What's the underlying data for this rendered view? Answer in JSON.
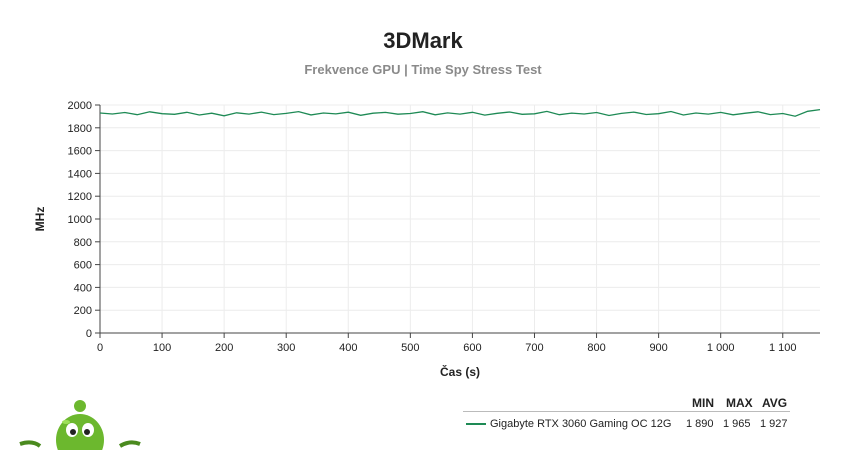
{
  "chart_data": {
    "type": "line",
    "title": "3DMark",
    "subtitle": "Frekvence GPU | Time Spy Stress Test",
    "xlabel": "Čas (s)",
    "ylabel": "MHz",
    "xlim": [
      0,
      1160
    ],
    "ylim": [
      0,
      2000
    ],
    "x_ticks": [
      0,
      100,
      200,
      300,
      400,
      500,
      600,
      700,
      800,
      900,
      1000,
      1100
    ],
    "x_tick_labels": [
      "0",
      "100",
      "200",
      "300",
      "400",
      "500",
      "600",
      "700",
      "800",
      "900",
      "1 000",
      "1 100"
    ],
    "y_ticks": [
      0,
      200,
      400,
      600,
      800,
      1000,
      1200,
      1400,
      1600,
      1800,
      2000
    ],
    "grid": true,
    "series": [
      {
        "name": "Gigabyte RTX 3060 Gaming OC 12G",
        "color": "#1e8a55",
        "x": [
          0,
          20,
          40,
          60,
          80,
          100,
          120,
          140,
          160,
          180,
          200,
          220,
          240,
          260,
          280,
          300,
          320,
          340,
          360,
          380,
          400,
          420,
          440,
          460,
          480,
          500,
          520,
          540,
          560,
          580,
          600,
          620,
          640,
          660,
          680,
          700,
          720,
          740,
          760,
          780,
          800,
          820,
          840,
          860,
          880,
          900,
          920,
          940,
          960,
          980,
          1000,
          1020,
          1040,
          1060,
          1080,
          1100,
          1120,
          1140,
          1160
        ],
        "values": [
          1930,
          1921,
          1934,
          1915,
          1940,
          1924,
          1918,
          1936,
          1912,
          1928,
          1905,
          1932,
          1920,
          1938,
          1916,
          1926,
          1942,
          1913,
          1930,
          1922,
          1937,
          1910,
          1928,
          1935,
          1919,
          1925,
          1941,
          1914,
          1931,
          1920,
          1936,
          1911,
          1927,
          1939,
          1918,
          1923,
          1944,
          1915,
          1929,
          1921,
          1934,
          1908,
          1926,
          1938,
          1917,
          1924,
          1943,
          1912,
          1930,
          1920,
          1935,
          1914,
          1928,
          1940,
          1916,
          1925,
          1902,
          1945,
          1960
        ]
      }
    ],
    "legend": {
      "headers": [
        "MIN",
        "MAX",
        "AVG"
      ],
      "rows": [
        {
          "name": "Gigabyte RTX 3060 Gaming OC 12G",
          "min": "1 890",
          "max": "1 965",
          "avg": "1 927"
        }
      ]
    }
  }
}
